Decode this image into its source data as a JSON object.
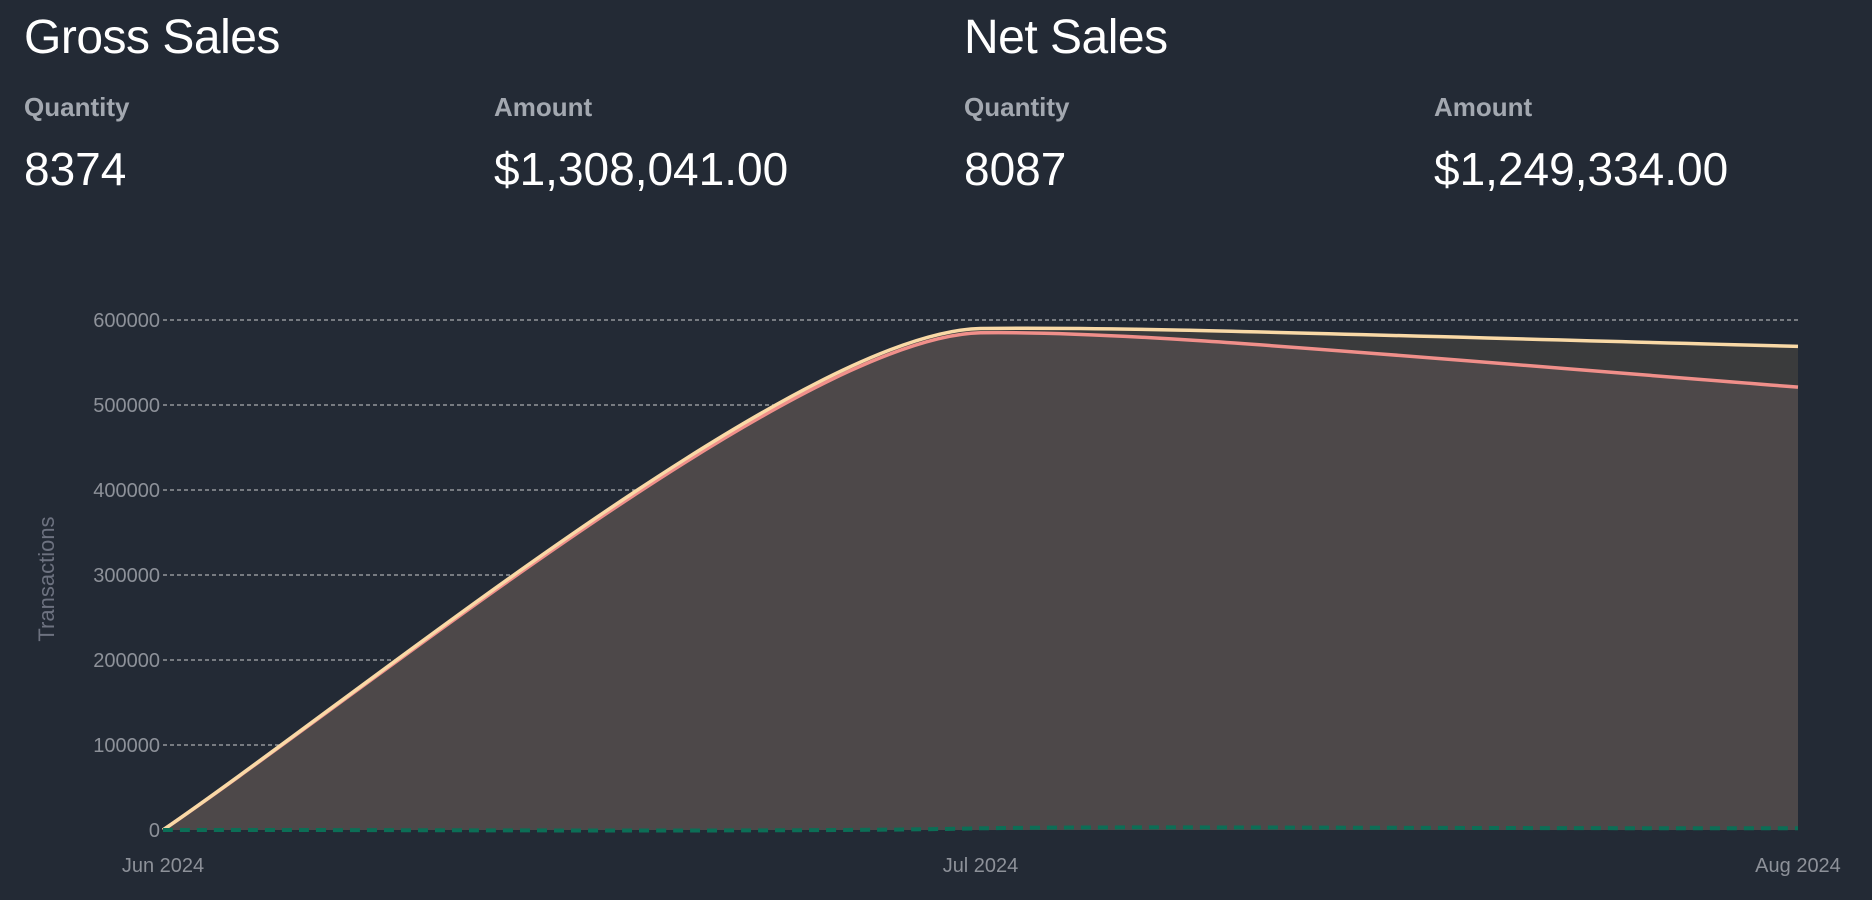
{
  "gross": {
    "title": "Gross Sales",
    "quantity_label": "Quantity",
    "quantity_value": "8374",
    "amount_label": "Amount",
    "amount_value": "$1,308,041.00"
  },
  "net": {
    "title": "Net Sales",
    "quantity_label": "Quantity",
    "quantity_value": "8087",
    "amount_label": "Amount",
    "amount_value": "$1,249,334.00"
  },
  "chart_data": {
    "type": "area",
    "ylabel": "Transactions",
    "xlabel": "",
    "x": [
      "Jun 2024",
      "Jul 2024",
      "Aug 2024"
    ],
    "x_ticks": [
      "Jun 2024",
      "Jul 2024",
      "Aug 2024"
    ],
    "y_ticks": [
      "0",
      "100000",
      "200000",
      "300000",
      "400000",
      "500000",
      "600000"
    ],
    "ylim": [
      0,
      600000
    ],
    "grid": true,
    "series": [
      {
        "color": "#f9d9a6",
        "values": [
          0,
          590000,
          569000
        ]
      },
      {
        "color": "#f08f8a",
        "values": [
          0,
          585000,
          521000
        ]
      },
      {
        "color": "#0c6e56",
        "values": [
          0,
          2000,
          2000
        ]
      }
    ],
    "colors": {
      "area_outer": "#3a3b3c",
      "area_inner": "#4d4849",
      "grid": "#d8d8d8"
    }
  }
}
